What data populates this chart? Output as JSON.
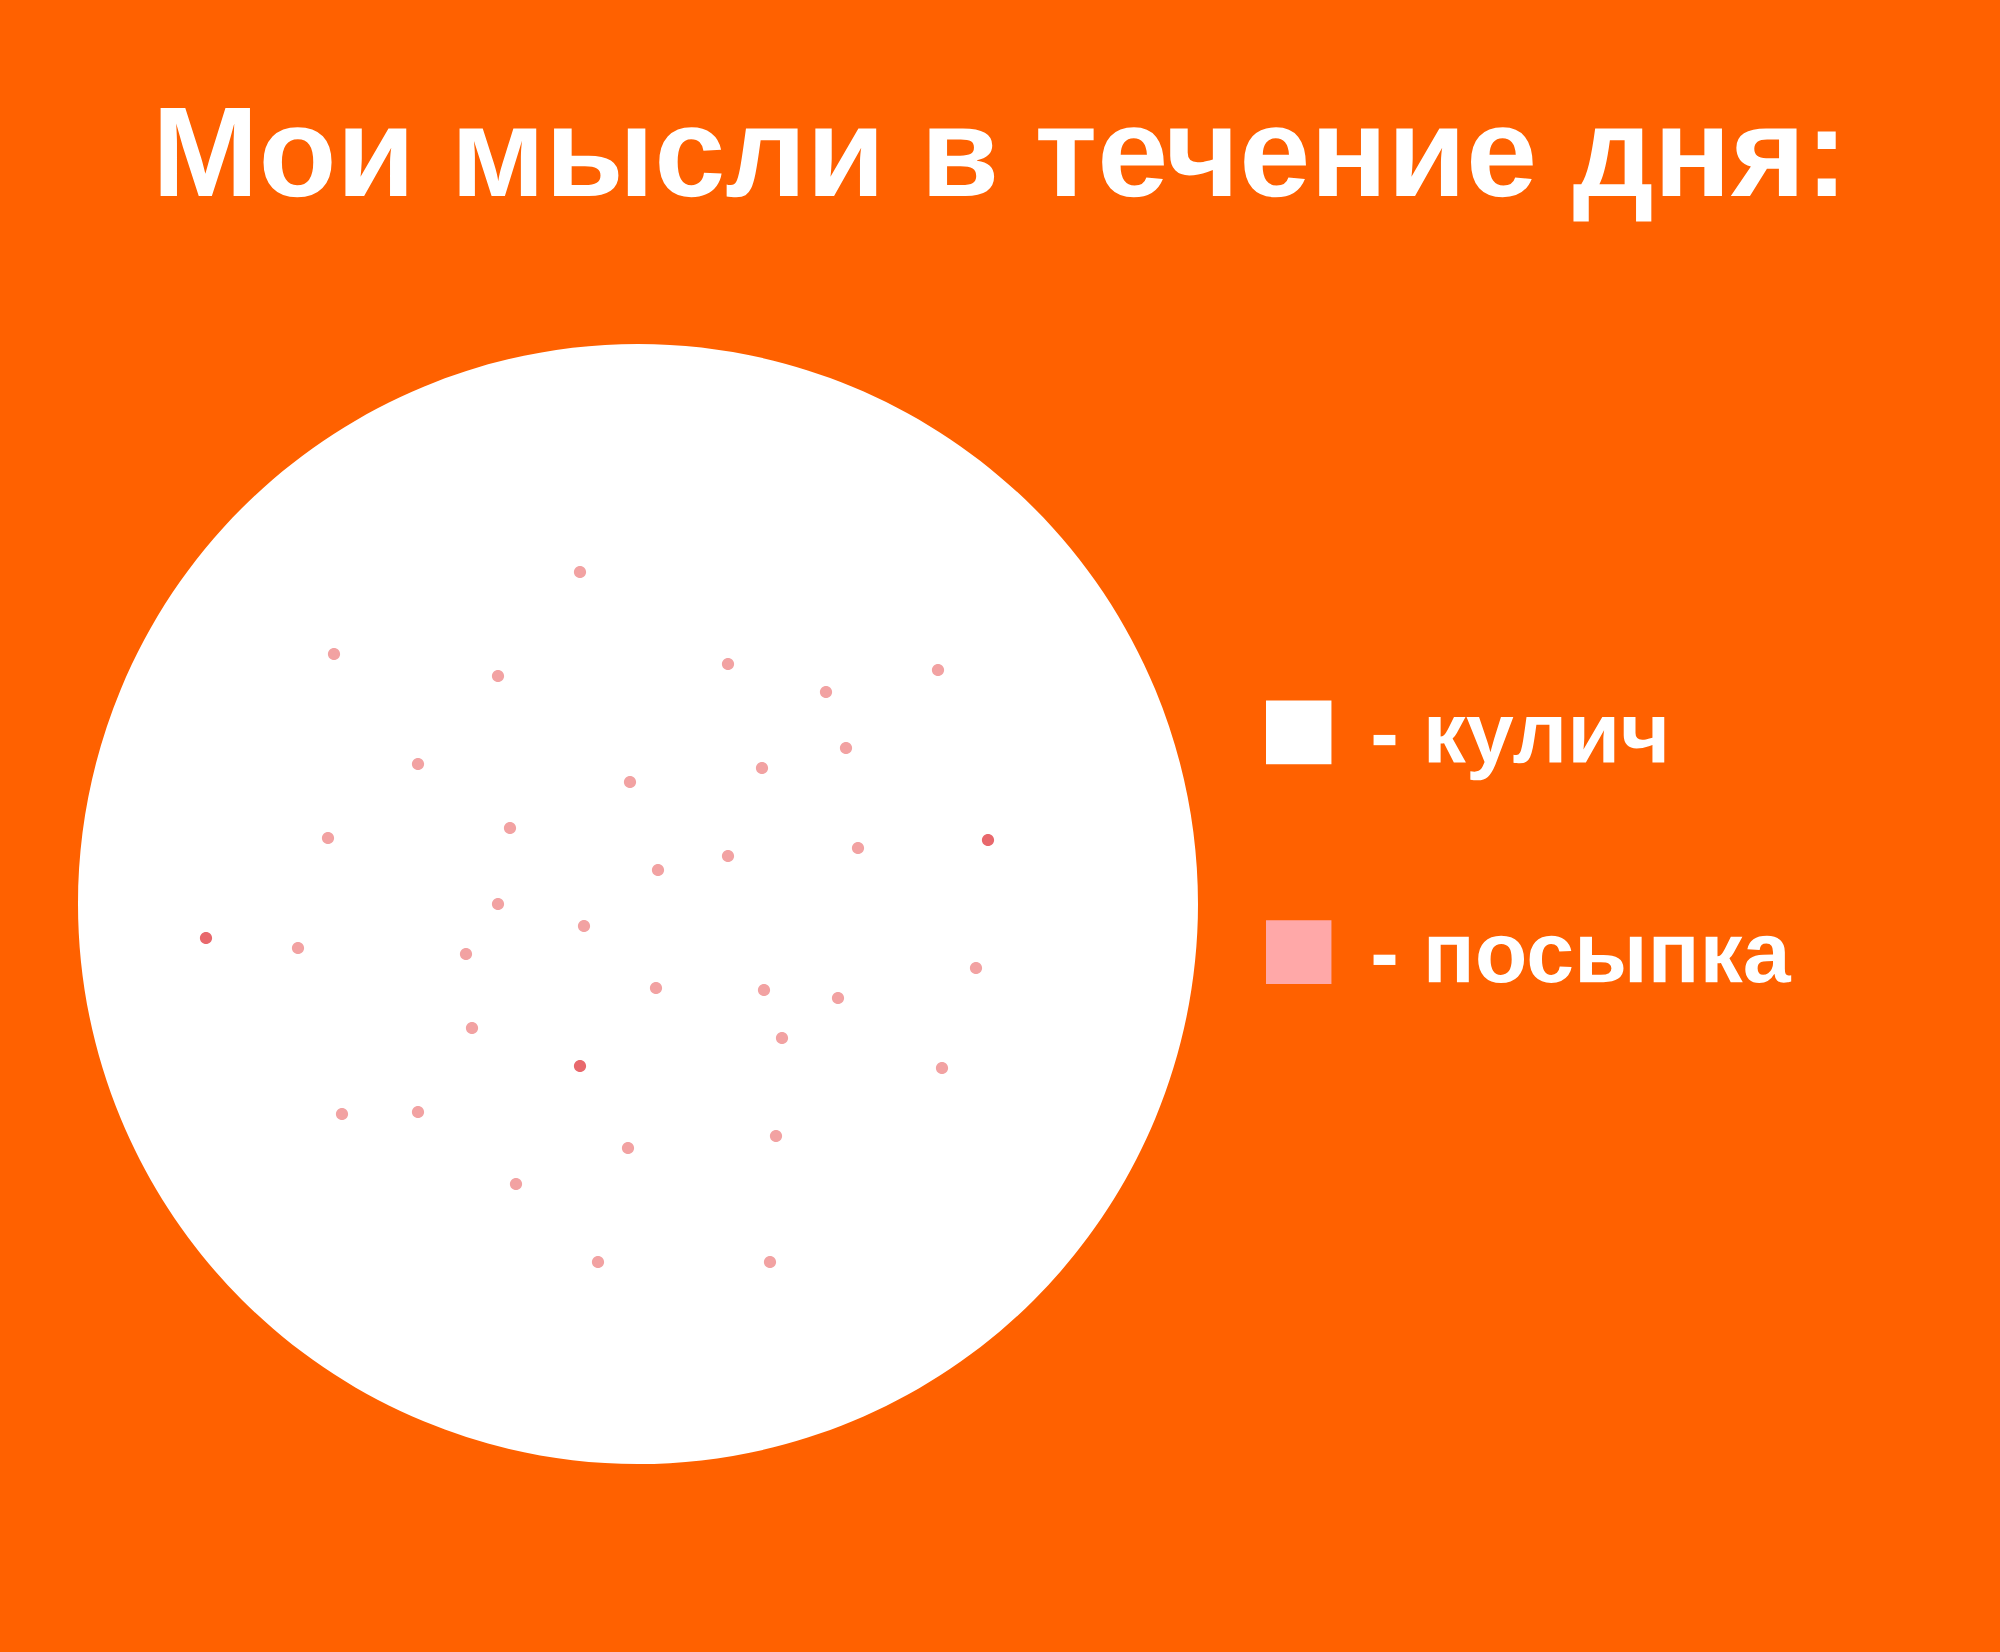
{
  "chart_data": {
    "type": "pie",
    "title": "Мои мысли в течение дня:",
    "categories": [
      "- кулич",
      "- посыпка"
    ],
    "values": [
      100,
      0
    ],
    "colors": [
      "#ffffff",
      "#ffa8a8"
    ],
    "legend": "right"
  }
}
